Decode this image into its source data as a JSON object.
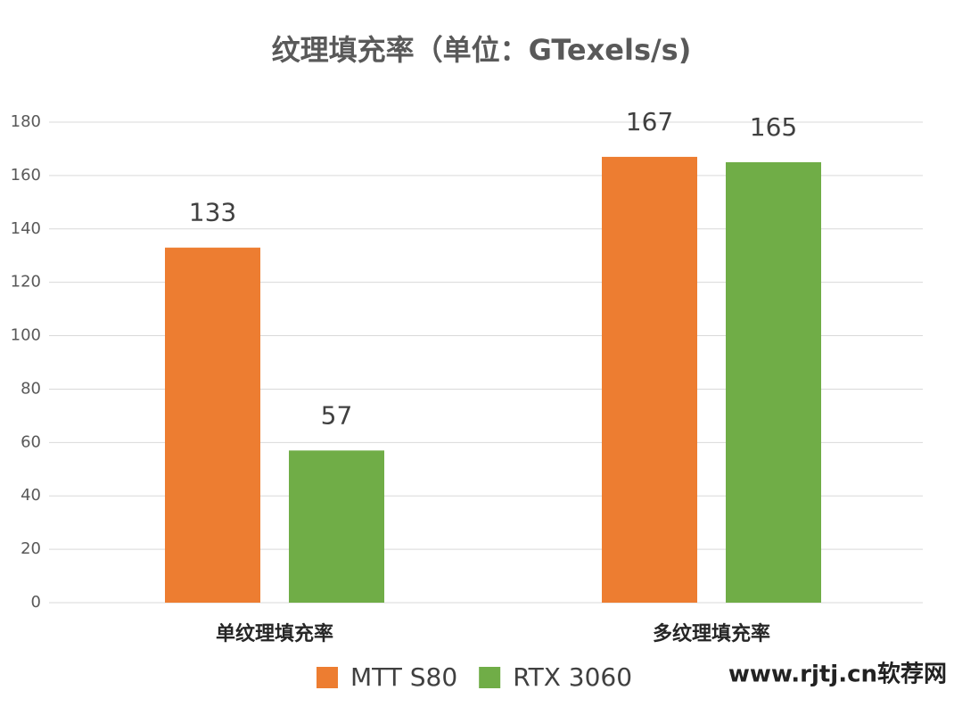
{
  "chart_data": {
    "type": "bar",
    "title": "纹理填充率（单位：GTexels/s)",
    "categories": [
      "单纹理填充率",
      "多纹理填充率"
    ],
    "series": [
      {
        "name": "MTT S80",
        "color": "#ed7d31",
        "values": [
          133,
          167
        ]
      },
      {
        "name": "RTX 3060",
        "color": "#70ad47",
        "values": [
          57,
          165
        ]
      }
    ],
    "ylim": [
      0,
      180
    ],
    "yticks": [
      0,
      20,
      40,
      60,
      80,
      100,
      120,
      140,
      160,
      180
    ],
    "grid": true,
    "legend": "bottom",
    "watermark": "www.rjtj.cn软荐网"
  }
}
